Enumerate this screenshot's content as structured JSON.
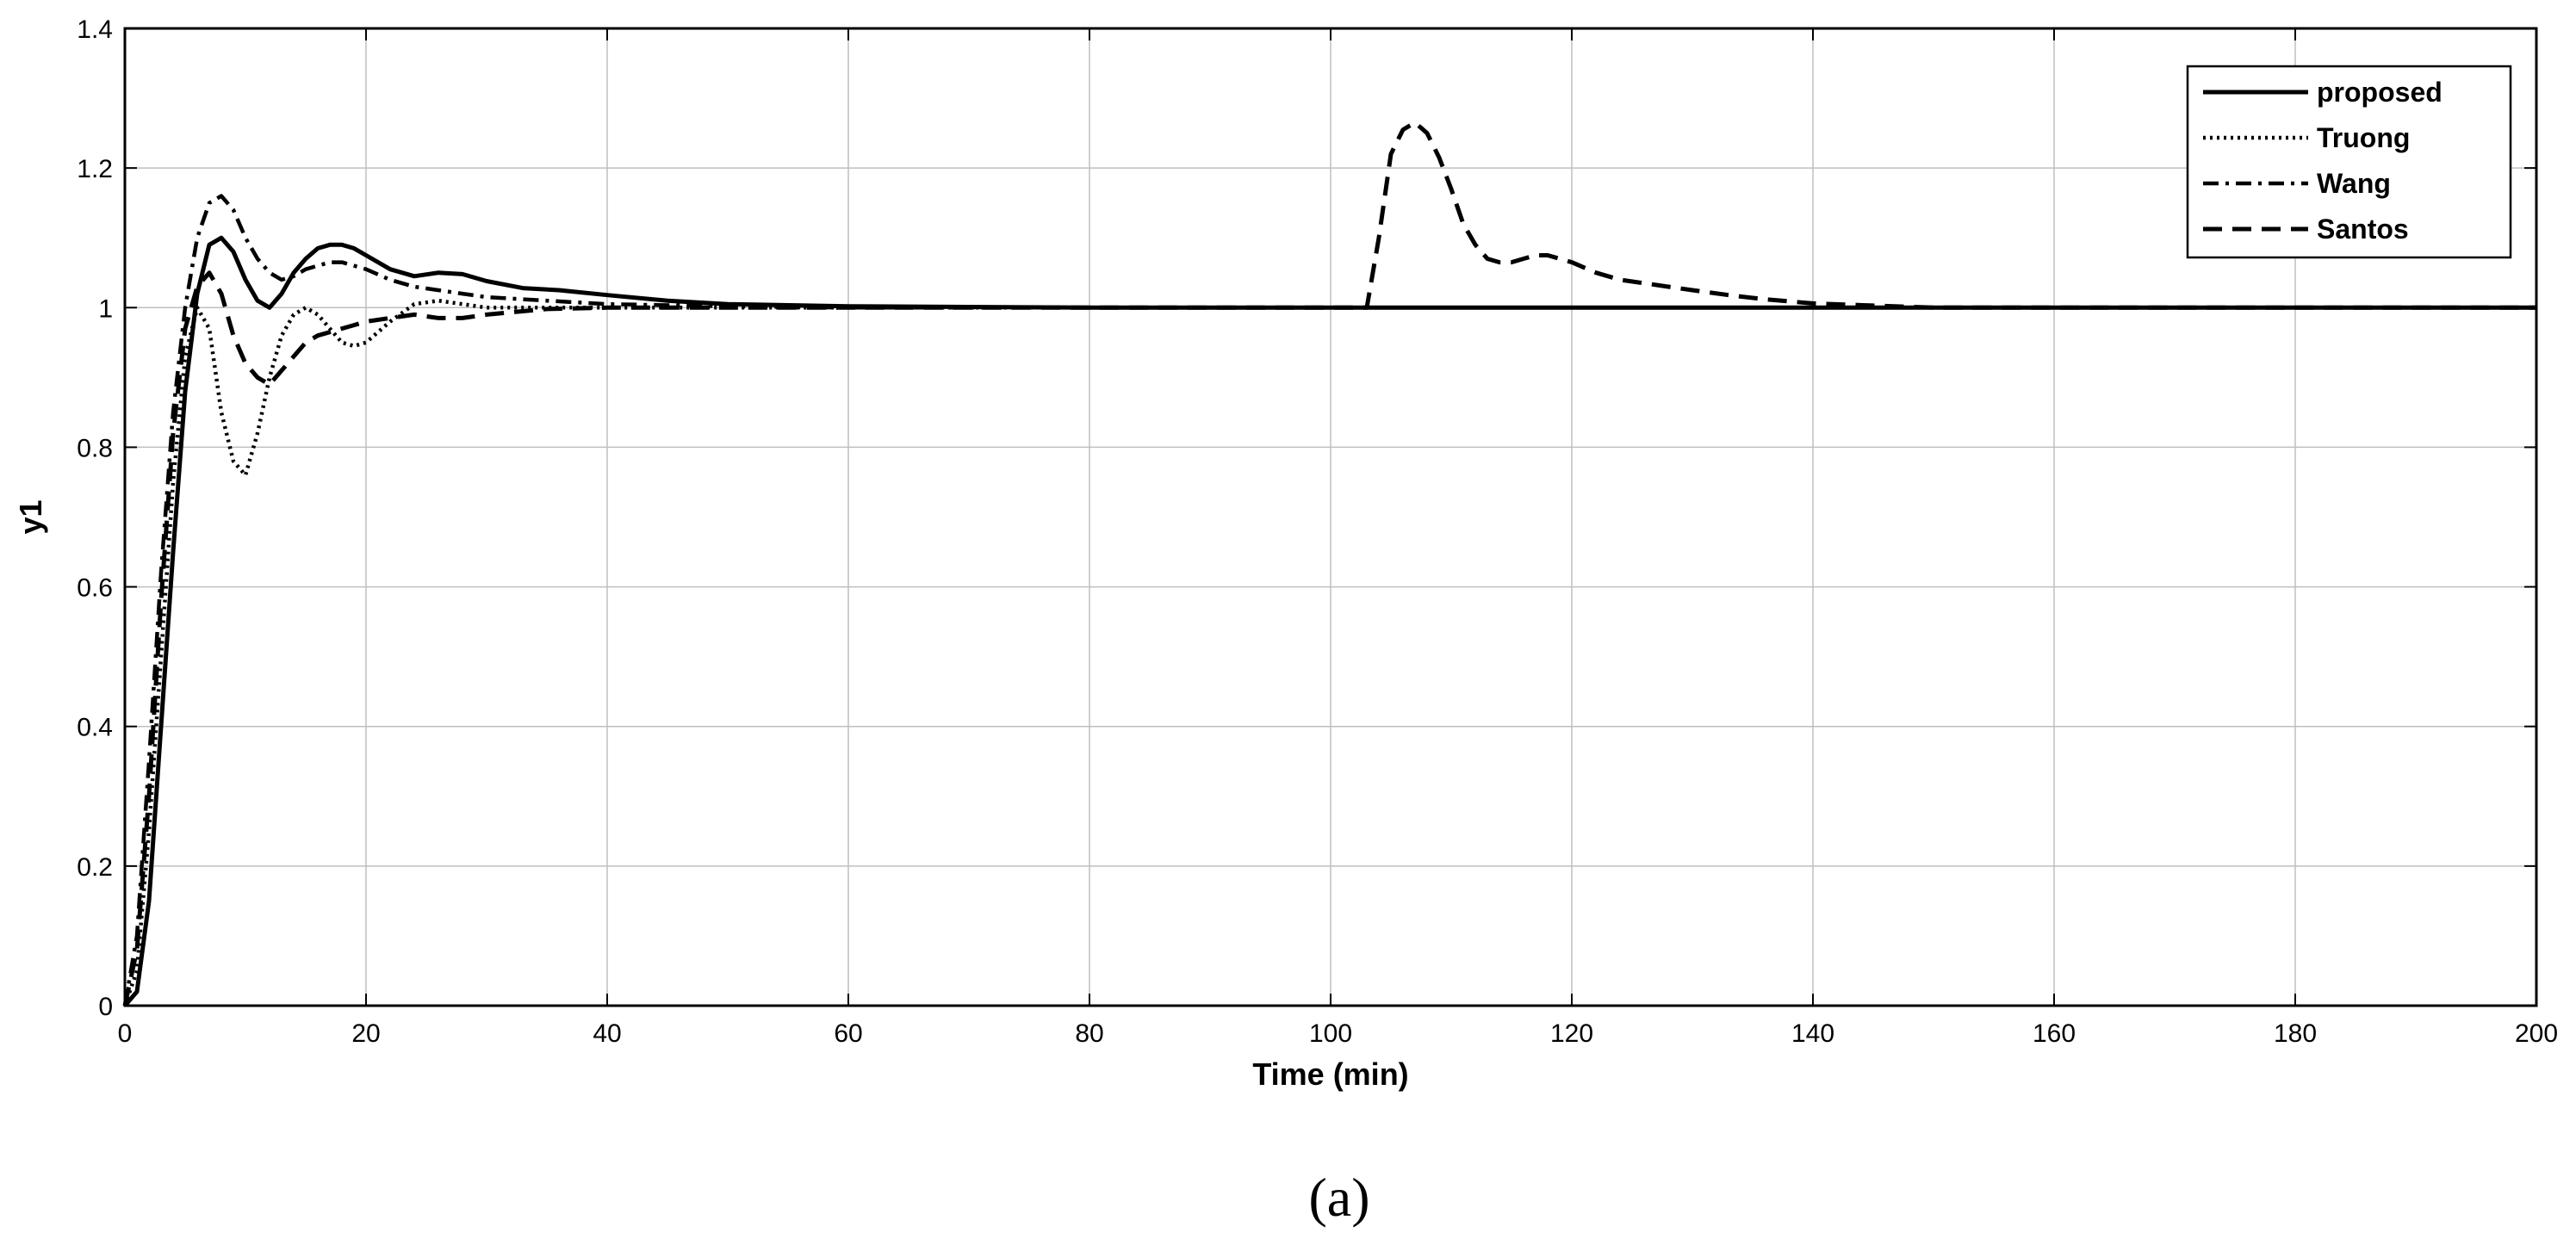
{
  "chart_data": {
    "type": "line",
    "xlabel": "Time (min)",
    "ylabel": "y1",
    "caption": "(a)",
    "xlim": [
      0,
      200
    ],
    "ylim": [
      0,
      1.4
    ],
    "xticks": [
      "0",
      "20",
      "40",
      "60",
      "80",
      "100",
      "120",
      "140",
      "160",
      "180",
      "200"
    ],
    "yticks": [
      "0",
      "0.2",
      "0.4",
      "0.6",
      "0.8",
      "1",
      "1.2",
      "1.4"
    ],
    "grid": true,
    "legend_position": "top-right",
    "series": [
      {
        "name": "proposed",
        "style": "solid",
        "x": [
          0,
          1,
          2,
          3,
          4,
          5,
          6,
          7,
          8,
          9,
          10,
          11,
          12,
          13,
          14,
          15,
          16,
          17,
          18,
          19,
          20,
          22,
          24,
          26,
          28,
          30,
          33,
          36,
          40,
          45,
          50,
          60,
          80,
          100,
          120,
          140,
          160,
          180,
          200
        ],
        "y": [
          0,
          0.02,
          0.15,
          0.4,
          0.65,
          0.88,
          1.02,
          1.09,
          1.1,
          1.08,
          1.04,
          1.01,
          1.0,
          1.02,
          1.05,
          1.07,
          1.085,
          1.09,
          1.09,
          1.085,
          1.075,
          1.055,
          1.045,
          1.05,
          1.048,
          1.038,
          1.028,
          1.025,
          1.018,
          1.01,
          1.005,
          1.002,
          1.0,
          1.0,
          1.0,
          1.0,
          1.0,
          1.0,
          1.0
        ]
      },
      {
        "name": "Truong",
        "style": "dotted",
        "x": [
          0,
          1,
          2,
          3,
          4,
          5,
          6,
          7,
          8,
          9,
          10,
          11,
          12,
          13,
          14,
          15,
          16,
          17,
          18,
          19,
          20,
          22,
          24,
          26,
          28,
          30,
          35,
          40,
          50,
          60,
          80,
          100,
          120,
          140,
          160,
          180,
          200
        ],
        "y": [
          0,
          0.05,
          0.25,
          0.5,
          0.75,
          0.93,
          1.0,
          0.97,
          0.85,
          0.78,
          0.76,
          0.82,
          0.9,
          0.96,
          0.99,
          1.0,
          0.99,
          0.97,
          0.95,
          0.945,
          0.95,
          0.98,
          1.005,
          1.01,
          1.005,
          1.0,
          1.0,
          1.0,
          1.0,
          1.0,
          1.0,
          1.0,
          1.0,
          1.0,
          1.0,
          1.0,
          1.0
        ]
      },
      {
        "name": "Wang",
        "style": "dashdot",
        "x": [
          0,
          1,
          2,
          3,
          4,
          5,
          6,
          7,
          8,
          9,
          10,
          11,
          12,
          13,
          14,
          15,
          16,
          17,
          18,
          19,
          20,
          22,
          24,
          26,
          28,
          30,
          35,
          40,
          50,
          60,
          80,
          100,
          120,
          140,
          160,
          180,
          200
        ],
        "y": [
          0,
          0.1,
          0.35,
          0.62,
          0.85,
          1.0,
          1.1,
          1.15,
          1.16,
          1.14,
          1.1,
          1.07,
          1.05,
          1.04,
          1.045,
          1.055,
          1.06,
          1.065,
          1.065,
          1.06,
          1.055,
          1.04,
          1.03,
          1.025,
          1.02,
          1.015,
          1.01,
          1.005,
          1.002,
          1.0,
          1.0,
          1.0,
          1.0,
          1.0,
          1.0,
          1.0,
          1.0
        ]
      },
      {
        "name": "Santos",
        "style": "dashed",
        "x": [
          0,
          1,
          2,
          3,
          4,
          5,
          6,
          7,
          8,
          9,
          10,
          11,
          12,
          13,
          14,
          15,
          16,
          17,
          18,
          19,
          20,
          22,
          24,
          26,
          28,
          30,
          35,
          40,
          50,
          60,
          80,
          100,
          102,
          103,
          104,
          105,
          106,
          107,
          108,
          109,
          110,
          111,
          112,
          113,
          114,
          115,
          116,
          117,
          118,
          119,
          120,
          122,
          124,
          126,
          128,
          130,
          133,
          136,
          140,
          145,
          150,
          160,
          180,
          200
        ],
        "y": [
          0,
          0.08,
          0.3,
          0.58,
          0.82,
          0.97,
          1.03,
          1.05,
          1.02,
          0.96,
          0.92,
          0.9,
          0.89,
          0.91,
          0.93,
          0.95,
          0.96,
          0.965,
          0.97,
          0.975,
          0.98,
          0.985,
          0.99,
          0.985,
          0.985,
          0.99,
          0.998,
          1.0,
          1.0,
          1.0,
          1.0,
          1.0,
          1.0,
          1.0,
          1.1,
          1.22,
          1.255,
          1.265,
          1.25,
          1.215,
          1.17,
          1.12,
          1.09,
          1.07,
          1.065,
          1.065,
          1.07,
          1.075,
          1.075,
          1.07,
          1.065,
          1.05,
          1.04,
          1.035,
          1.03,
          1.025,
          1.018,
          1.012,
          1.006,
          1.003,
          1.0,
          1.0,
          1.0,
          1.0
        ]
      }
    ]
  }
}
